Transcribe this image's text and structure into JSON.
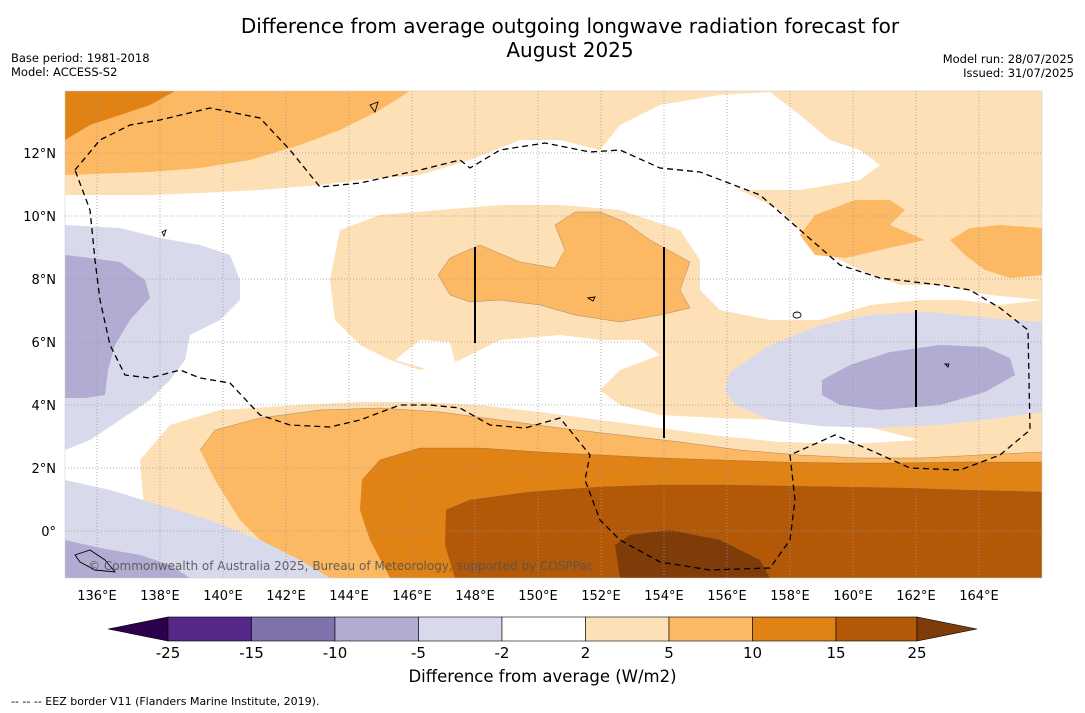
{
  "title": {
    "line1": "Difference from average outgoing longwave radiation forecast for",
    "line2": "August 2025"
  },
  "meta_left": {
    "base_period": "Base period: 1981-2018",
    "model": "Model: ACCESS-S2"
  },
  "meta_right": {
    "model_run": "Model run: 28/07/2025",
    "issued": "Issued: 31/07/2025"
  },
  "map": {
    "lon_labels": [
      "136°E",
      "138°E",
      "140°E",
      "142°E",
      "144°E",
      "146°E",
      "148°E",
      "150°E",
      "152°E",
      "154°E",
      "156°E",
      "158°E",
      "160°E",
      "162°E",
      "164°E"
    ],
    "lat_labels": [
      "12°N",
      "10°N",
      "8°N",
      "6°N",
      "4°N",
      "2°N",
      "0°"
    ],
    "copyright": "© Commonwealth of Australia 2025, Bureau of Meteorology, supported by COSPPac"
  },
  "colorbar": {
    "ticks": [
      "-25",
      "-15",
      "-10",
      "-5",
      "-2",
      "2",
      "5",
      "10",
      "15",
      "25"
    ],
    "colors": [
      "#542788",
      "#8073ac",
      "#b2abd2",
      "#d8daeb",
      "#ffffff",
      "#fee0b6",
      "#fdb863",
      "#e08214",
      "#b35806"
    ],
    "under_color": "#2d004b",
    "over_color": "#7f3b08",
    "label": "Difference from average (W/m2)"
  },
  "legend": {
    "eez_border": "--  --  -- EEZ border V11 (Flanders Marine Institute, 2019)."
  }
}
